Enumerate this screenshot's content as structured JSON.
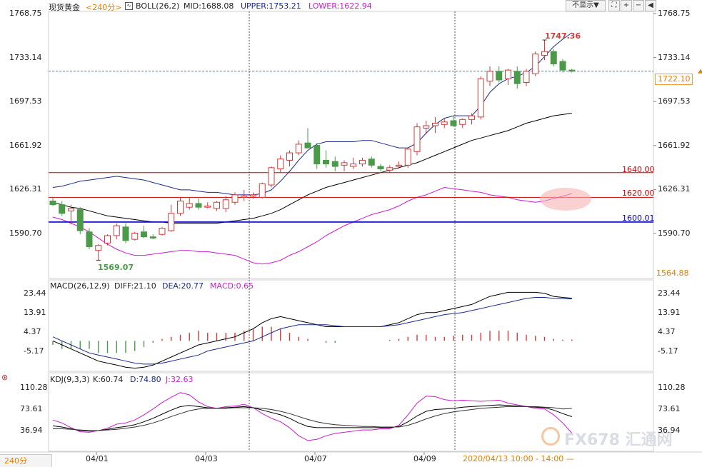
{
  "header": {
    "symbol": "现货黄金",
    "timeframe": "<240分>",
    "indicator": "BOLL(26,2)",
    "mid": "MID:1688.08",
    "upper": "UPPER:1753.21",
    "lower": "LOWER:1622.94",
    "hide_button": "不显示▼"
  },
  "macd_header": {
    "name": "MACD(26,12,9)",
    "diff": "DIFF:21.10",
    "dea": "DEA:20.77",
    "macd": "MACD:0.65"
  },
  "kdj_header": {
    "name": "KDJ(9,3,3)",
    "k": "K:60.74",
    "d": "D:74.80",
    "j": "J:32.63"
  },
  "price_axis_labels": [
    "1768.75",
    "1733.14",
    "1697.53",
    "1661.92",
    "1626.31",
    "1590.70"
  ],
  "price_axis_bottom": "1564.88",
  "last_price": "1722.10",
  "macd_axis_labels": [
    "23.44",
    "13.91",
    "4.37",
    "-5.17"
  ],
  "kdj_axis_labels": [
    "110.28",
    "73.61",
    "36.94"
  ],
  "date_labels": [
    "04/01",
    "04/03",
    "04/07",
    "04/09"
  ],
  "crosshair_time": "2020/04/13 10:00 - 14:00 —",
  "high_label": "1747.36",
  "low_label": "1569.07",
  "levels": [
    "1640.00",
    "1620.00",
    "1600.01"
  ],
  "bottom_tab": "240分",
  "watermark": "FX678 汇通网",
  "colors": {
    "up": "#d23b3b",
    "down": "#4a9a4a",
    "boll_mid": "#000000",
    "boll_upper": "#1a2a8c",
    "boll_lower": "#cc1ccc",
    "support": "#0000cc",
    "resistance": "#cc0000",
    "last_line": "#3a88c8"
  },
  "chart_data": {
    "type": "candlestick",
    "timeframe": "240分",
    "ylim": [
      1564.88,
      1768.75
    ],
    "candles": [
      {
        "o": 1617,
        "h": 1620,
        "l": 1613,
        "c": 1614
      },
      {
        "o": 1614,
        "h": 1617,
        "l": 1605,
        "c": 1607
      },
      {
        "o": 1609,
        "h": 1614,
        "l": 1598,
        "c": 1611
      },
      {
        "o": 1610,
        "h": 1612,
        "l": 1590,
        "c": 1593
      },
      {
        "o": 1592,
        "h": 1595,
        "l": 1578,
        "c": 1580
      },
      {
        "o": 1577,
        "h": 1582,
        "l": 1569.07,
        "c": 1581
      },
      {
        "o": 1583,
        "h": 1590,
        "l": 1581,
        "c": 1589
      },
      {
        "o": 1589,
        "h": 1599,
        "l": 1586,
        "c": 1597
      },
      {
        "o": 1596,
        "h": 1599,
        "l": 1583,
        "c": 1585
      },
      {
        "o": 1586,
        "h": 1592,
        "l": 1585,
        "c": 1591
      },
      {
        "o": 1592,
        "h": 1597,
        "l": 1587,
        "c": 1588
      },
      {
        "o": 1588,
        "h": 1590,
        "l": 1586,
        "c": 1587
      },
      {
        "o": 1590,
        "h": 1596,
        "l": 1589,
        "c": 1595
      },
      {
        "o": 1593,
        "h": 1614,
        "l": 1592,
        "c": 1607
      },
      {
        "o": 1607,
        "h": 1620,
        "l": 1605,
        "c": 1617
      },
      {
        "o": 1612,
        "h": 1620,
        "l": 1610,
        "c": 1615
      },
      {
        "o": 1615,
        "h": 1619,
        "l": 1610,
        "c": 1612
      },
      {
        "o": 1612,
        "h": 1616,
        "l": 1611,
        "c": 1613
      },
      {
        "o": 1611,
        "h": 1617,
        "l": 1609,
        "c": 1616
      },
      {
        "o": 1611,
        "h": 1621,
        "l": 1608,
        "c": 1618
      },
      {
        "o": 1616,
        "h": 1624,
        "l": 1614,
        "c": 1622
      },
      {
        "o": 1620,
        "h": 1626,
        "l": 1617,
        "c": 1621
      },
      {
        "o": 1621,
        "h": 1624,
        "l": 1619,
        "c": 1622
      },
      {
        "o": 1620,
        "h": 1632,
        "l": 1619,
        "c": 1631
      },
      {
        "o": 1630,
        "h": 1645,
        "l": 1628,
        "c": 1644
      },
      {
        "o": 1643,
        "h": 1654,
        "l": 1640,
        "c": 1651
      },
      {
        "o": 1650,
        "h": 1658,
        "l": 1645,
        "c": 1656
      },
      {
        "o": 1656,
        "h": 1666,
        "l": 1654,
        "c": 1663
      },
      {
        "o": 1664,
        "h": 1676,
        "l": 1661,
        "c": 1660
      },
      {
        "o": 1662,
        "h": 1664,
        "l": 1643,
        "c": 1647
      },
      {
        "o": 1650,
        "h": 1658,
        "l": 1644,
        "c": 1647
      },
      {
        "o": 1649,
        "h": 1653,
        "l": 1641,
        "c": 1645
      },
      {
        "o": 1646,
        "h": 1650,
        "l": 1641,
        "c": 1648
      },
      {
        "o": 1645,
        "h": 1652,
        "l": 1643,
        "c": 1647
      },
      {
        "o": 1647,
        "h": 1652,
        "l": 1645,
        "c": 1650
      },
      {
        "o": 1651,
        "h": 1653,
        "l": 1644,
        "c": 1646
      },
      {
        "o": 1645,
        "h": 1647,
        "l": 1641,
        "c": 1643
      },
      {
        "o": 1642,
        "h": 1646,
        "l": 1640,
        "c": 1644
      },
      {
        "o": 1645,
        "h": 1649,
        "l": 1643,
        "c": 1646
      },
      {
        "o": 1646,
        "h": 1660,
        "l": 1644,
        "c": 1659
      },
      {
        "o": 1657,
        "h": 1680,
        "l": 1654,
        "c": 1677
      },
      {
        "o": 1676,
        "h": 1682,
        "l": 1671,
        "c": 1678
      },
      {
        "o": 1678,
        "h": 1685,
        "l": 1672,
        "c": 1680
      },
      {
        "o": 1679,
        "h": 1684,
        "l": 1676,
        "c": 1681
      },
      {
        "o": 1682,
        "h": 1686,
        "l": 1677,
        "c": 1678
      },
      {
        "o": 1679,
        "h": 1684,
        "l": 1676,
        "c": 1683
      },
      {
        "o": 1683,
        "h": 1688,
        "l": 1679,
        "c": 1686
      },
      {
        "o": 1685,
        "h": 1718,
        "l": 1683,
        "c": 1716
      },
      {
        "o": 1714,
        "h": 1726,
        "l": 1710,
        "c": 1722
      },
      {
        "o": 1722,
        "h": 1726,
        "l": 1713,
        "c": 1715
      },
      {
        "o": 1716,
        "h": 1724,
        "l": 1711,
        "c": 1723
      },
      {
        "o": 1722,
        "h": 1726,
        "l": 1708,
        "c": 1712
      },
      {
        "o": 1713,
        "h": 1724,
        "l": 1710,
        "c": 1722
      },
      {
        "o": 1720,
        "h": 1738,
        "l": 1718,
        "c": 1736
      },
      {
        "o": 1735,
        "h": 1747.36,
        "l": 1731,
        "c": 1738
      },
      {
        "o": 1738,
        "h": 1740,
        "l": 1726,
        "c": 1728
      },
      {
        "o": 1730,
        "h": 1732,
        "l": 1721,
        "c": 1723
      },
      {
        "o": 1723,
        "h": 1724,
        "l": 1721,
        "c": 1722.1
      }
    ],
    "boll": {
      "upper": [
        1628,
        1629,
        1631,
        1633,
        1634,
        1635,
        1636,
        1637,
        1636,
        1635,
        1634,
        1632,
        1630,
        1628,
        1626,
        1626,
        1625,
        1624,
        1624,
        1623,
        1622,
        1622,
        1622,
        1623,
        1626,
        1633,
        1641,
        1650,
        1658,
        1663,
        1665,
        1665,
        1665,
        1665,
        1666,
        1666,
        1664,
        1662,
        1660,
        1660,
        1664,
        1672,
        1679,
        1684,
        1686,
        1686,
        1686,
        1694,
        1705,
        1712,
        1716,
        1718,
        1721,
        1726,
        1734,
        1742,
        1748,
        1753.21
      ],
      "mid": [
        1616,
        1614,
        1612,
        1611,
        1609,
        1607,
        1605,
        1604,
        1603,
        1602,
        1601,
        1600,
        1600,
        1599,
        1599,
        1599,
        1599,
        1599,
        1599,
        1600,
        1601,
        1602,
        1603,
        1605,
        1607,
        1610,
        1614,
        1618,
        1622,
        1625,
        1628,
        1630,
        1632,
        1634,
        1636,
        1638,
        1640,
        1642,
        1644,
        1646,
        1648,
        1651,
        1654,
        1657,
        1660,
        1663,
        1666,
        1668,
        1670,
        1672,
        1674,
        1677,
        1680,
        1682,
        1684,
        1686,
        1687,
        1688.08
      ],
      "lower": [
        1604,
        1602,
        1599,
        1596,
        1592,
        1587,
        1582,
        1578,
        1575,
        1573,
        1573,
        1574,
        1575,
        1576,
        1577,
        1577,
        1576,
        1576,
        1575,
        1574,
        1573,
        1570,
        1567,
        1566,
        1567,
        1569,
        1573,
        1576,
        1580,
        1584,
        1589,
        1593,
        1597,
        1600,
        1603,
        1606,
        1608,
        1610,
        1613,
        1617,
        1620,
        1622,
        1625,
        1628,
        1627,
        1626,
        1625,
        1624,
        1622,
        1621,
        1620,
        1618,
        1617,
        1616,
        1617,
        1619,
        1621,
        1622.94
      ]
    },
    "levels": [
      1640.0,
      1620.0,
      1600.01
    ],
    "macd": {
      "diff": [
        0,
        -2,
        -4,
        -6,
        -8,
        -10,
        -11,
        -12,
        -13,
        -13.5,
        -13,
        -12,
        -10,
        -8,
        -6,
        -4,
        -2,
        -1,
        0,
        1,
        2,
        4,
        6,
        9,
        11,
        12,
        11,
        10,
        9,
        8,
        7,
        7,
        7,
        7,
        7,
        7,
        7,
        8,
        9,
        11,
        13,
        14,
        14,
        15,
        16,
        17,
        18,
        20,
        22,
        23,
        24,
        24,
        24,
        24,
        23.5,
        22,
        21.5,
        21.1
      ],
      "dea": [
        2,
        0,
        -2,
        -4,
        -6,
        -7,
        -8,
        -9,
        -10,
        -11,
        -11.5,
        -11.5,
        -11,
        -10,
        -9,
        -8,
        -7,
        -5,
        -4,
        -3,
        -2,
        -1,
        0,
        2,
        4,
        6,
        7,
        8,
        8,
        8,
        8,
        7.5,
        7,
        7,
        7,
        7,
        7,
        7.5,
        8,
        9,
        10,
        11,
        12,
        13,
        13.5,
        14,
        15,
        16,
        17,
        18,
        19,
        20,
        21,
        21.5,
        21.5,
        21,
        20.9,
        20.77
      ],
      "hist": [
        -2,
        -4,
        -4,
        -4,
        -4,
        -6,
        -6,
        -6,
        -6,
        -5,
        -3,
        -1,
        1,
        2,
        3,
        4,
        5,
        4,
        4,
        4,
        4,
        5,
        6,
        7,
        7,
        6,
        4,
        2,
        1,
        0,
        -1,
        -1,
        0,
        0,
        0,
        0,
        0,
        0.5,
        1,
        2,
        3,
        3,
        2,
        2,
        2.5,
        3,
        3,
        4,
        5,
        5,
        5,
        4,
        3,
        2.5,
        2,
        1,
        0.6,
        0.65
      ]
    },
    "kdj": {
      "k": [
        45,
        43,
        40,
        37,
        36,
        37,
        39,
        42,
        44,
        47,
        52,
        58,
        65,
        72,
        78,
        80,
        78,
        76,
        75,
        76,
        77,
        78,
        76,
        72,
        68,
        64,
        58,
        50,
        44,
        42,
        42,
        42,
        42,
        42,
        42,
        42,
        42,
        42,
        44,
        52,
        62,
        70,
        73,
        74,
        75,
        77,
        78,
        79,
        80,
        81,
        80,
        79,
        78,
        77,
        76,
        72,
        66,
        60.74
      ],
      "d": [
        40,
        40,
        39,
        38,
        37,
        37,
        38,
        39,
        41,
        43,
        46,
        50,
        55,
        61,
        66,
        71,
        74,
        75,
        75,
        75,
        76,
        76,
        76,
        75,
        73,
        70,
        66,
        61,
        56,
        52,
        49,
        47,
        46,
        45,
        44,
        44,
        43,
        43,
        43,
        46,
        51,
        57,
        62,
        66,
        69,
        71,
        73,
        75,
        76,
        77,
        78,
        78,
        78,
        78,
        77,
        76,
        74,
        74.8
      ],
      "j": [
        55,
        50,
        42,
        35,
        34,
        37,
        41,
        48,
        50,
        55,
        64,
        74,
        85,
        94,
        102,
        98,
        86,
        78,
        75,
        78,
        79,
        82,
        76,
        66,
        58,
        52,
        42,
        28,
        20,
        22,
        28,
        32,
        34,
        36,
        38,
        38,
        40,
        40,
        46,
        64,
        84,
        96,
        95,
        90,
        88,
        89,
        88,
        87,
        88,
        89,
        84,
        81,
        78,
        75,
        74,
        64,
        50,
        32.63
      ]
    },
    "date_ticks": [
      {
        "label": "04/01",
        "index": 4
      },
      {
        "label": "04/03",
        "index": 16
      },
      {
        "label": "04/07",
        "index": 28
      },
      {
        "label": "04/09",
        "index": 40
      }
    ]
  }
}
